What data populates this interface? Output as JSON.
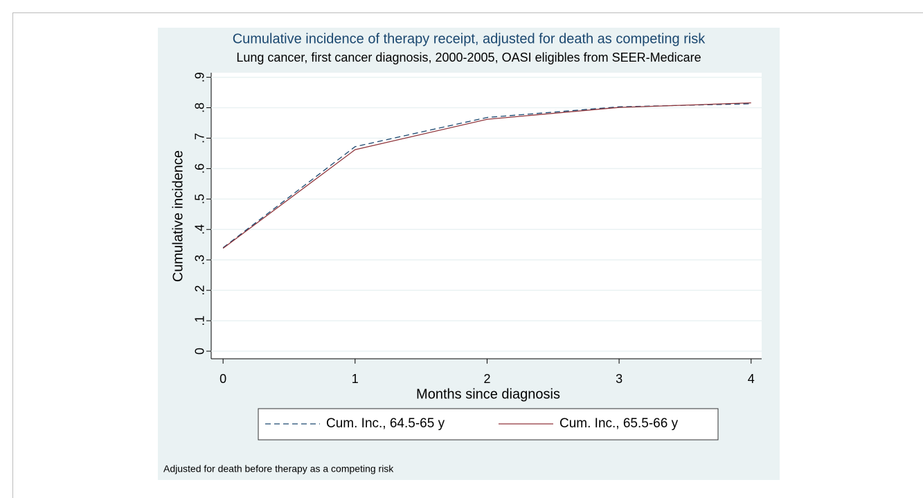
{
  "chart_data": {
    "type": "line",
    "title": "Cumulative incidence of therapy receipt, adjusted for death as competing risk",
    "subtitle": "Lung cancer, first cancer diagnosis, 2000-2005, OASI eligibles from SEER-Medicare",
    "x_label": "Months since diagnosis",
    "y_label": "Cumulative incidence",
    "note": "Adjusted for death before therapy as a competing risk",
    "x": [
      0,
      1,
      2,
      3,
      4
    ],
    "series": [
      {
        "name": "Cum. Inc., 64.5-65 y",
        "color": "#1a476f",
        "dashed": true,
        "values": [
          0.34,
          0.672,
          0.768,
          0.803,
          0.813
        ]
      },
      {
        "name": "Cum. Inc., 65.5-66 y",
        "color": "#90353b",
        "dashed": false,
        "values": [
          0.338,
          0.662,
          0.762,
          0.801,
          0.816
        ]
      }
    ],
    "xlim": [
      -0.09,
      4.08
    ],
    "xticks": [
      0,
      1,
      2,
      3,
      4
    ],
    "ylim": [
      -0.025,
      0.915
    ],
    "yticks": [
      0,
      {
        "value": 0.1,
        "label": ".1"
      },
      {
        "value": 0.2,
        "label": ".2"
      },
      {
        "value": 0.3,
        "label": ".3"
      },
      {
        "value": 0.4,
        "label": ".4"
      },
      {
        "value": 0.5,
        "label": ".5"
      },
      {
        "value": 0.6,
        "label": ".6"
      },
      {
        "value": 0.7,
        "label": ".7"
      },
      {
        "value": 0.8,
        "label": ".8"
      },
      {
        "value": 0.9,
        "label": ".9"
      }
    ],
    "grid": true,
    "legend": "bottom"
  }
}
